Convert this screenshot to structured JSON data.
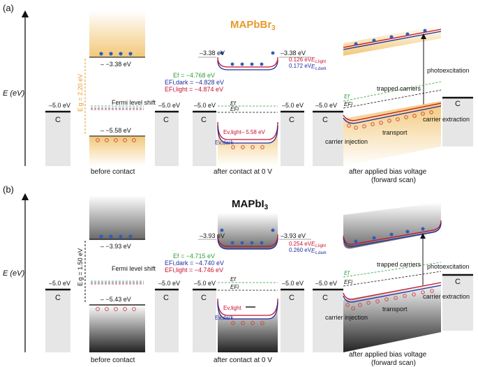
{
  "panels": [
    {
      "label": "(a)",
      "axis_label": "E (eV)",
      "material": "MAPbBr",
      "material_sub": "3",
      "material_color": "#E79A2A",
      "accent": "#F2C879",
      "before": {
        "metal_level": "–5.0 eV",
        "metal_label": "C",
        "ec": "– −3.38 eV",
        "ev": "– −5.58 eV",
        "eg": "E g = 2.20 eV",
        "fermi_shift": "Fermi level shift",
        "caption": "before contact"
      },
      "after": {
        "metal_left": "–5.0 eV",
        "metal_right": "–5.0 eV",
        "metal_label_left": "C",
        "metal_label_right": "C",
        "top_left": "–3.38 eV",
        "top_right": "–3.38 eV",
        "shift1": "0.126 eV",
        "shift2": "0.172 eV",
        "lab1": "E",
        "lab1_sub": "c,light",
        "lab2": "E",
        "lab2_sub": "c,dark",
        "ef": "Ef = −4.768 eV",
        "efd": "EFi,dark = −4.828 eV",
        "efl": "EFi,light = −4.874 eV",
        "ev_light": "Ev,light– 5.58 eV",
        "ev_dark": "Ev,dark",
        "e1": "Ef",
        "e2": "EFi",
        "caption": "after contact at 0 V"
      },
      "bias": {
        "metal_left": "–5.0 eV",
        "metal_label_left": "C",
        "metal_label_right": "C",
        "photo": "photoexcitation",
        "trapped": "trapped carriers",
        "transport": "transport",
        "injection": "carrier injection",
        "extraction": "carrier extraction",
        "e1": "Ef",
        "e2": "EFi",
        "caption": "after applied bias voltage",
        "caption2": "(forward scan)"
      }
    },
    {
      "label": "(b)",
      "axis_label": "E (eV)",
      "material": "MAPbI",
      "material_sub": "3",
      "material_color": "#111111",
      "accent": "#555555",
      "before": {
        "metal_level": "–5.0 eV",
        "metal_label": "C",
        "ec": "– −3.93 eV",
        "ev": "– −5.43 eV",
        "eg": "E g = 1.50 eV",
        "fermi_shift": "Fermi level shift",
        "caption": "before contact"
      },
      "after": {
        "metal_left": "–5.0 eV",
        "metal_right": "–5.0 eV",
        "metal_label_left": "C",
        "metal_label_right": "C",
        "top_left": "–3.93 eV",
        "top_right": "–3.93 eV",
        "shift1": "0.254 eV",
        "shift2": "0.260 eV",
        "lab1": "E",
        "lab1_sub": "c,light",
        "lab2": "E",
        "lab2_sub": "c,dark",
        "ef": "Ef = −4.715 eV",
        "efd": "EFi,dark = −4.740 eV",
        "efl": "EFi,light = −4.746 eV",
        "ev_light": "Ev,light",
        "ev_dark": "Ev,dark",
        "e1": "Ef",
        "e2": "EFi",
        "caption": "after contact at 0 V"
      },
      "bias": {
        "metal_left": "–5.0 eV",
        "metal_label_left": "C",
        "metal_label_right": "C",
        "photo": "photoexcitation",
        "trapped": "trapped carriers",
        "transport": "transport",
        "injection": "carrier injection",
        "extraction": "carrier extraction",
        "e1": "Ef",
        "e2": "EFi",
        "caption": "after applied bias voltage",
        "caption2": "(forward scan)"
      }
    }
  ],
  "colors": {
    "conduction_red": "#C8102E",
    "conduction_blue": "#1F2E9E",
    "green": "#2E9E3A",
    "hole": "#D23B3B",
    "electron": "#2D5EB8"
  }
}
